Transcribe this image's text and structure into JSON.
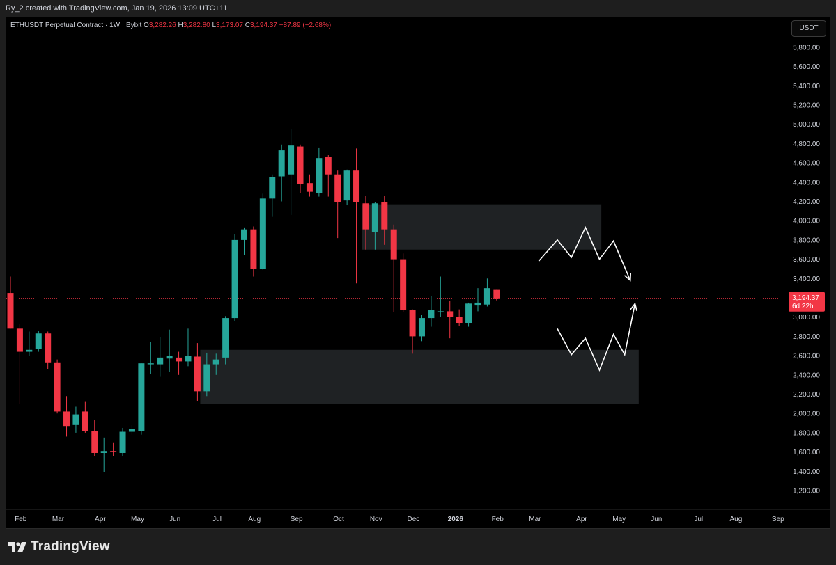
{
  "header": {
    "credit": "Ry_2 created with TradingView.com, Jan 19, 2026 13:09 UTC+11"
  },
  "legend": {
    "symbol": "ETHUSDT Perpetual Contract",
    "timeframe": "1W",
    "exchange": "Bybit",
    "open_label": "O",
    "open": "3,282.26",
    "high_label": "H",
    "high": "3,282.80",
    "low_label": "L",
    "low": "3,173.07",
    "close_label": "C",
    "close": "3,194.37",
    "change": "−87.89 (−2.68%)"
  },
  "currency_button": "USDT",
  "footer": {
    "brand": "TradingView"
  },
  "colors": {
    "bullish": "#26a69a",
    "bearish": "#f23645",
    "zone": "#1f2224",
    "price_line": "#f23645",
    "background": "#000000"
  },
  "chart_data": {
    "type": "candlestick",
    "timeframe": "1W",
    "ylim": [
      1050,
      6050
    ],
    "y_ticks": [
      "1,200.00",
      "1,400.00",
      "1,600.00",
      "1,800.00",
      "2,000.00",
      "2,200.00",
      "2,400.00",
      "2,600.00",
      "2,800.00",
      "3,000.00",
      "3,200.00",
      "3,400.00",
      "3,600.00",
      "3,800.00",
      "4,000.00",
      "4,200.00",
      "4,400.00",
      "4,600.00",
      "4,800.00",
      "5,000.00",
      "5,200.00",
      "5,400.00",
      "5,600.00",
      "5,800.00"
    ],
    "y_tick_values": [
      1200,
      1400,
      1600,
      1800,
      2000,
      2200,
      2400,
      2600,
      2800,
      3000,
      3200,
      3400,
      3600,
      3800,
      4000,
      4200,
      4400,
      4600,
      4800,
      5000,
      5200,
      5400,
      5600,
      5800
    ],
    "x_labels": [
      {
        "label": "Feb",
        "week": 1.1
      },
      {
        "label": "Mar",
        "week": 5.1
      },
      {
        "label": "Apr",
        "week": 9.6
      },
      {
        "label": "May",
        "week": 13.6
      },
      {
        "label": "Jun",
        "week": 17.6
      },
      {
        "label": "Jul",
        "week": 22.1
      },
      {
        "label": "Aug",
        "week": 26.1
      },
      {
        "label": "Sep",
        "week": 30.6
      },
      {
        "label": "Oct",
        "week": 35.1
      },
      {
        "label": "Nov",
        "week": 39.1
      },
      {
        "label": "Dec",
        "week": 43.1
      },
      {
        "label": "2026",
        "week": 47.6,
        "bold": true
      },
      {
        "label": "Feb",
        "week": 52.1
      },
      {
        "label": "Mar",
        "week": 56.1
      },
      {
        "label": "Apr",
        "week": 61.1
      },
      {
        "label": "May",
        "week": 65.1
      },
      {
        "label": "Jun",
        "week": 69.1
      },
      {
        "label": "Jul",
        "week": 73.6
      },
      {
        "label": "Aug",
        "week": 77.6
      },
      {
        "label": "Sep",
        "week": 82.1
      }
    ],
    "candles": [
      {
        "o": 3250,
        "h": 3420,
        "l": 2880,
        "c": 2880
      },
      {
        "o": 2880,
        "h": 2930,
        "l": 2100,
        "c": 2640
      },
      {
        "o": 2640,
        "h": 2850,
        "l": 2600,
        "c": 2660
      },
      {
        "o": 2670,
        "h": 2860,
        "l": 2640,
        "c": 2830
      },
      {
        "o": 2830,
        "h": 2850,
        "l": 2460,
        "c": 2530
      },
      {
        "o": 2530,
        "h": 2560,
        "l": 2000,
        "c": 2020
      },
      {
        "o": 2020,
        "h": 2180,
        "l": 1760,
        "c": 1870
      },
      {
        "o": 1880,
        "h": 2070,
        "l": 1800,
        "c": 1990
      },
      {
        "o": 2020,
        "h": 2120,
        "l": 1800,
        "c": 1820
      },
      {
        "o": 1820,
        "h": 1930,
        "l": 1560,
        "c": 1590
      },
      {
        "o": 1590,
        "h": 1750,
        "l": 1390,
        "c": 1610
      },
      {
        "o": 1610,
        "h": 1700,
        "l": 1560,
        "c": 1600
      },
      {
        "o": 1590,
        "h": 1850,
        "l": 1560,
        "c": 1810
      },
      {
        "o": 1810,
        "h": 1880,
        "l": 1780,
        "c": 1840
      },
      {
        "o": 1820,
        "h": 2520,
        "l": 1780,
        "c": 2520
      },
      {
        "o": 2510,
        "h": 2740,
        "l": 2410,
        "c": 2520
      },
      {
        "o": 2510,
        "h": 2790,
        "l": 2380,
        "c": 2580
      },
      {
        "o": 2570,
        "h": 2870,
        "l": 2430,
        "c": 2600
      },
      {
        "o": 2580,
        "h": 2640,
        "l": 2400,
        "c": 2540
      },
      {
        "o": 2540,
        "h": 2880,
        "l": 2490,
        "c": 2600
      },
      {
        "o": 2590,
        "h": 2730,
        "l": 2130,
        "c": 2230
      },
      {
        "o": 2230,
        "h": 2630,
        "l": 2180,
        "c": 2510
      },
      {
        "o": 2510,
        "h": 2620,
        "l": 2400,
        "c": 2560
      },
      {
        "o": 2580,
        "h": 3010,
        "l": 2510,
        "c": 2990
      },
      {
        "o": 2990,
        "h": 3860,
        "l": 2960,
        "c": 3800
      },
      {
        "o": 3800,
        "h": 3930,
        "l": 3640,
        "c": 3910
      },
      {
        "o": 3910,
        "h": 3940,
        "l": 3420,
        "c": 3500
      },
      {
        "o": 3500,
        "h": 4280,
        "l": 3490,
        "c": 4230
      },
      {
        "o": 4230,
        "h": 4480,
        "l": 4040,
        "c": 4450
      },
      {
        "o": 4460,
        "h": 4790,
        "l": 4200,
        "c": 4730
      },
      {
        "o": 4480,
        "h": 4950,
        "l": 4060,
        "c": 4780
      },
      {
        "o": 4770,
        "h": 4790,
        "l": 4290,
        "c": 4380
      },
      {
        "o": 4390,
        "h": 4480,
        "l": 4250,
        "c": 4300
      },
      {
        "o": 4290,
        "h": 4760,
        "l": 4250,
        "c": 4650
      },
      {
        "o": 4660,
        "h": 4680,
        "l": 4250,
        "c": 4480
      },
      {
        "o": 4480,
        "h": 4520,
        "l": 3820,
        "c": 4190
      },
      {
        "o": 4210,
        "h": 4530,
        "l": 4160,
        "c": 4520
      },
      {
        "o": 4520,
        "h": 4750,
        "l": 3350,
        "c": 4190
      },
      {
        "o": 4180,
        "h": 4260,
        "l": 3700,
        "c": 3910
      },
      {
        "o": 3880,
        "h": 4190,
        "l": 3700,
        "c": 4180
      },
      {
        "o": 4190,
        "h": 4260,
        "l": 3750,
        "c": 3910
      },
      {
        "o": 3910,
        "h": 3960,
        "l": 3050,
        "c": 3600
      },
      {
        "o": 3600,
        "h": 3660,
        "l": 3050,
        "c": 3070
      },
      {
        "o": 3070,
        "h": 3080,
        "l": 2620,
        "c": 2800
      },
      {
        "o": 2800,
        "h": 3020,
        "l": 2750,
        "c": 2990
      },
      {
        "o": 2990,
        "h": 3220,
        "l": 2900,
        "c": 3070
      },
      {
        "o": 3060,
        "h": 3420,
        "l": 3000,
        "c": 3060
      },
      {
        "o": 3060,
        "h": 3170,
        "l": 2780,
        "c": 3000
      },
      {
        "o": 3000,
        "h": 3080,
        "l": 2910,
        "c": 2940
      },
      {
        "o": 2940,
        "h": 3150,
        "l": 2900,
        "c": 3140
      },
      {
        "o": 3120,
        "h": 3300,
        "l": 3060,
        "c": 3150
      },
      {
        "o": 3130,
        "h": 3400,
        "l": 3110,
        "c": 3300
      },
      {
        "o": 3282.26,
        "h": 3282.8,
        "l": 3173.07,
        "c": 3194.37
      }
    ],
    "zones": [
      {
        "name": "supply",
        "w_start": 37.6,
        "w_end": 63.2,
        "y_top": 4170,
        "y_bottom": 3700
      },
      {
        "name": "demand",
        "w_start": 20.3,
        "w_end": 67.2,
        "y_top": 2660,
        "y_bottom": 2100
      }
    ],
    "projections": [
      {
        "name": "upper-path",
        "points": [
          [
            56.5,
            3580
          ],
          [
            58.5,
            3800
          ],
          [
            60,
            3620
          ],
          [
            61.5,
            3930
          ],
          [
            63,
            3600
          ],
          [
            64.5,
            3790
          ],
          [
            66.3,
            3380
          ]
        ]
      },
      {
        "name": "lower-path",
        "points": [
          [
            58.5,
            2880
          ],
          [
            60,
            2610
          ],
          [
            61.5,
            2780
          ],
          [
            63,
            2450
          ],
          [
            64.5,
            2820
          ],
          [
            65.7,
            2610
          ],
          [
            66.8,
            3140
          ]
        ]
      }
    ],
    "last_price": {
      "value": 3194.37,
      "label": "3,194.37",
      "countdown": "6d 22h"
    }
  }
}
